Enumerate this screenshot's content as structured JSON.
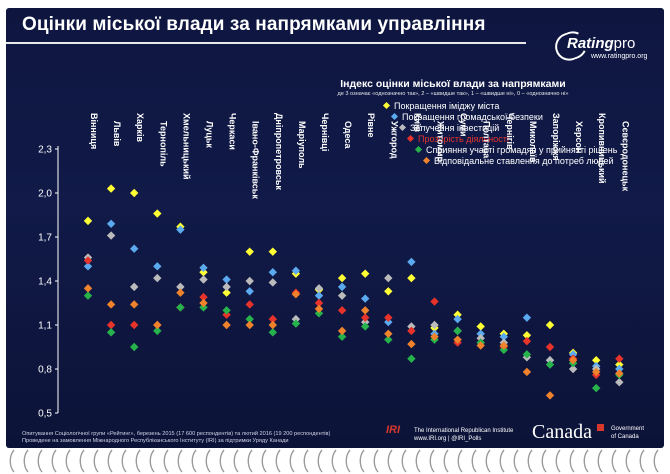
{
  "header": {
    "title": "Оцінки міської влади за напрямками управління",
    "logo_brand": "Rating",
    "logo_brand_suffix": "pro",
    "logo_url": "www.ratingpro.org"
  },
  "chart_data": {
    "type": "scatter",
    "title": "Індекс оцінки міської влади за напрямками",
    "subtitle": "де 3 означає «однозначно так», 2 – «швидше так», 1 – «швидше ні», 0 – «однозначно ні»",
    "ylim": [
      0.5,
      2.3
    ],
    "yticks": [
      "2,3",
      "2,0",
      "1,7",
      "1,4",
      "1,1",
      "0,8",
      "0,5"
    ],
    "ytick_values": [
      2.3,
      2.0,
      1.7,
      1.4,
      1.1,
      0.8,
      0.5
    ],
    "grid": false,
    "legend_position": "top-right",
    "categories": [
      "Вінниця",
      "Львів",
      "Харків",
      "Тернопіль",
      "Хмельницький",
      "Луцьк",
      "Черкаси",
      "Івано-Франківськ",
      "Дніпропетровськ",
      "Маріуполь",
      "Чернівці",
      "Одеса",
      "Рівне",
      "Ужгород",
      "Київ",
      "Житомир",
      "Суми",
      "Полтава",
      "Чернігів",
      "Миколаїв",
      "Запоріжжя",
      "Херсон",
      "Кропивницький",
      "Сєвєродонецьк"
    ],
    "series": [
      {
        "name": "Покращення іміджу міста",
        "color": "#ffff33",
        "values": [
          1.81,
          2.03,
          2.0,
          1.86,
          1.77,
          1.46,
          1.32,
          1.6,
          1.6,
          1.45,
          1.34,
          1.42,
          1.45,
          1.33,
          1.42,
          1.08,
          1.17,
          1.09,
          1.04,
          1.03,
          1.1,
          0.91,
          0.86,
          0.83
        ]
      },
      {
        "name": "Покращення громадської безпеки",
        "color": "#5ba9ef",
        "values": [
          1.5,
          1.79,
          1.62,
          1.5,
          1.75,
          1.49,
          1.41,
          1.33,
          1.46,
          1.47,
          1.3,
          1.36,
          1.28,
          1.12,
          1.53,
          1.04,
          1.14,
          1.04,
          1.02,
          1.15,
          0.86,
          0.9,
          0.82,
          0.8
        ]
      },
      {
        "name": "Запучення інвестицій",
        "color": "#bbbbbb",
        "values": [
          1.56,
          1.71,
          1.36,
          1.42,
          1.36,
          1.41,
          1.36,
          1.4,
          1.39,
          1.14,
          1.35,
          1.3,
          1.12,
          1.42,
          1.09,
          1.1,
          1.06,
          1.01,
          0.98,
          0.88,
          0.86,
          0.8,
          0.8,
          0.71
        ]
      },
      {
        "name": "Прозорість діяльності",
        "color": "#e8332b",
        "values": [
          1.54,
          1.1,
          1.1,
          1.1,
          1.22,
          1.29,
          1.17,
          1.24,
          1.14,
          1.32,
          1.25,
          1.2,
          1.15,
          1.15,
          1.06,
          1.26,
          0.98,
          0.98,
          0.95,
          0.99,
          0.95,
          0.87,
          0.76,
          0.87
        ]
      },
      {
        "name": "Сприяння участі громадян у прийнятті рішень",
        "color": "#27b34b",
        "values": [
          1.3,
          1.05,
          0.95,
          1.06,
          1.22,
          1.22,
          1.2,
          1.14,
          1.05,
          1.11,
          1.18,
          1.02,
          1.09,
          1.0,
          0.87,
          1.0,
          1.06,
          0.98,
          0.93,
          0.9,
          0.83,
          0.84,
          0.67,
          0.76
        ]
      },
      {
        "name": "Відповідальне ставлення до потреб людей",
        "color": "#f0822b",
        "values": [
          1.35,
          1.24,
          1.24,
          1.1,
          1.32,
          1.25,
          1.1,
          1.1,
          1.1,
          1.31,
          1.21,
          1.06,
          1.2,
          1.04,
          0.97,
          1.02,
          1.0,
          0.96,
          0.96,
          0.78,
          0.62,
          0.86,
          0.78,
          0.77
        ]
      }
    ]
  },
  "footer": {
    "note_line1": "Опитування Соціологічної групи «Рейтинг», березень 2015 (17 600 респондентів) та лютий 2016 (19 200 респондентів)",
    "note_line2": "Проведене на замовлення Міжнародного Республіканського Інституту (IRI) за підтримки Уряду Канади",
    "iri_mark": "IRI",
    "iri_line1": "The International Republican Institute",
    "iri_line2": "www.IRI.org | @IRI_Polls",
    "canada_word": "Canada",
    "gov_line1": "Government",
    "gov_line2": "of Canada"
  }
}
